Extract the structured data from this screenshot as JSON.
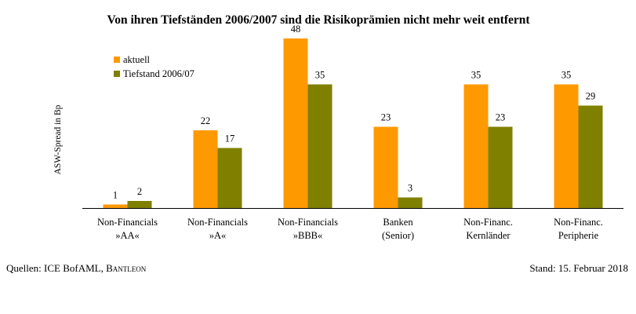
{
  "chart_data": {
    "type": "bar",
    "title": "Von ihren Tiefständen 2006/2007 sind die Risikoprämien nicht mehr weit entfernt",
    "ylabel": "ASW-Spread in Bp",
    "xlabel": "",
    "categories": [
      [
        "Non-Financials",
        "»AA«"
      ],
      [
        "Non-Financials",
        "»A«"
      ],
      [
        "Non-Financials",
        "»BBB«"
      ],
      [
        "Banken",
        "(Senior)"
      ],
      [
        "Non-Financ.",
        "Kernländer"
      ],
      [
        "Non-Financ.",
        "Peripherie"
      ]
    ],
    "series": [
      {
        "name": "aktuell",
        "color": "#FF9900",
        "values": [
          1,
          22,
          48,
          23,
          35,
          35
        ]
      },
      {
        "name": "Tiefstand 2006/07",
        "color": "#808000",
        "values": [
          2,
          17,
          35,
          3,
          23,
          29
        ]
      }
    ],
    "ylim": [
      0,
      50
    ],
    "grid": false,
    "legend": "top-left",
    "data_labels": true
  },
  "footer": {
    "source_prefix": "Quellen: ICE BofAML, ",
    "source_brand": "Bantleon",
    "date": "Stand: 15. Februar 2018"
  }
}
